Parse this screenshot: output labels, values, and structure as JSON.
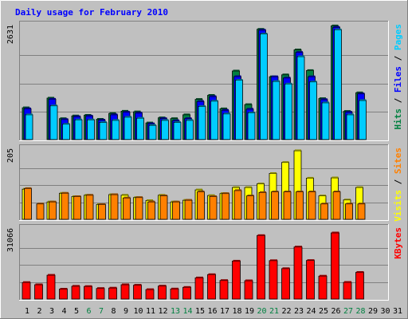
{
  "chart_data": {
    "type": "bar",
    "title": "Daily usage for February 2010",
    "days": [
      "1",
      "2",
      "3",
      "4",
      "5",
      "6",
      "7",
      "8",
      "9",
      "10",
      "11",
      "12",
      "13",
      "14",
      "15",
      "16",
      "17",
      "18",
      "19",
      "20",
      "21",
      "22",
      "23",
      "24",
      "25",
      "26",
      "27",
      "28",
      "29",
      "30",
      "31"
    ],
    "weekend_days": [
      "6",
      "7",
      "13",
      "14",
      "20",
      "21",
      "27",
      "28"
    ],
    "panels": [
      {
        "id": "pages-files-hits",
        "ymax": 2631,
        "ymax_label": "2631",
        "legend": [
          {
            "name": "Pages",
            "color": "#00ccff"
          },
          {
            "name": "Files",
            "color": "#0000ff"
          },
          {
            "name": "Hits",
            "color": "#008040"
          }
        ],
        "series": [
          {
            "name": "Hits",
            "color": "#008040",
            "values": [
              745,
              0,
              970,
              490,
              555,
              570,
              475,
              610,
              665,
              650,
              390,
              510,
              490,
              580,
              940,
              1035,
              720,
              1605,
              820,
              2580,
              1470,
              1515,
              2100,
              1615,
              960,
              2660,
              660,
              1095,
              0,
              0,
              0
            ]
          },
          {
            "name": "Files",
            "color": "#0000ff",
            "values": [
              720,
              0,
              945,
              470,
              535,
              550,
              455,
              580,
              640,
              620,
              370,
              490,
              440,
              490,
              890,
              1005,
              685,
              1475,
              710,
              2560,
              1470,
              1440,
              2040,
              1470,
              935,
              2625,
              640,
              1070,
              0,
              0,
              0
            ]
          },
          {
            "name": "Pages",
            "color": "#00ccff",
            "values": [
              580,
              0,
              790,
              360,
              460,
              460,
              400,
              450,
              525,
              500,
              330,
              450,
              400,
              450,
              775,
              900,
              600,
              1390,
              625,
              2470,
              1360,
              1300,
              1940,
              1350,
              860,
              2570,
              580,
              915,
              0,
              0,
              0
            ]
          }
        ]
      },
      {
        "id": "sites-visits",
        "ymax": 205,
        "ymax_label": "205",
        "legend": [
          {
            "name": "Sites",
            "color": "#ff8000"
          },
          {
            "name": "Visits",
            "color": "#ffff00"
          }
        ],
        "series": [
          {
            "name": "Visits",
            "color": "#ffff00",
            "values": [
              90,
              0,
              52,
              78,
              68,
              72,
              44,
              74,
              72,
              65,
              56,
              72,
              52,
              57,
              88,
              71,
              77,
              95,
              95,
              106,
              137,
              170,
              205,
              123,
              70,
              124,
              58,
              95,
              0,
              0,
              0
            ]
          },
          {
            "name": "Sites",
            "color": "#ff8000",
            "values": [
              92,
              46,
              52,
              78,
              68,
              72,
              44,
              74,
              64,
              65,
              52,
              70,
              52,
              57,
              82,
              68,
              77,
              86,
              70,
              80,
              82,
              82,
              82,
              82,
              46,
              82,
              46,
              46,
              0,
              0,
              0
            ]
          }
        ]
      },
      {
        "id": "kbytes",
        "ymax": 31066,
        "ymax_label": "31066",
        "legend": [
          {
            "name": "KBytes",
            "color": "#ff0000"
          }
        ],
        "series": [
          {
            "name": "KBytes",
            "color": "#ff0000",
            "values": [
              7500,
              6500,
              10800,
              4500,
              5800,
              5700,
              4800,
              5000,
              6500,
              6300,
              4300,
              5900,
              4600,
              5300,
              9600,
              11100,
              8400,
              17200,
              8300,
              28800,
              17400,
              13800,
              23600,
              17500,
              10400,
              30000,
              7600,
              12100,
              0,
              0,
              0
            ]
          }
        ]
      }
    ]
  }
}
